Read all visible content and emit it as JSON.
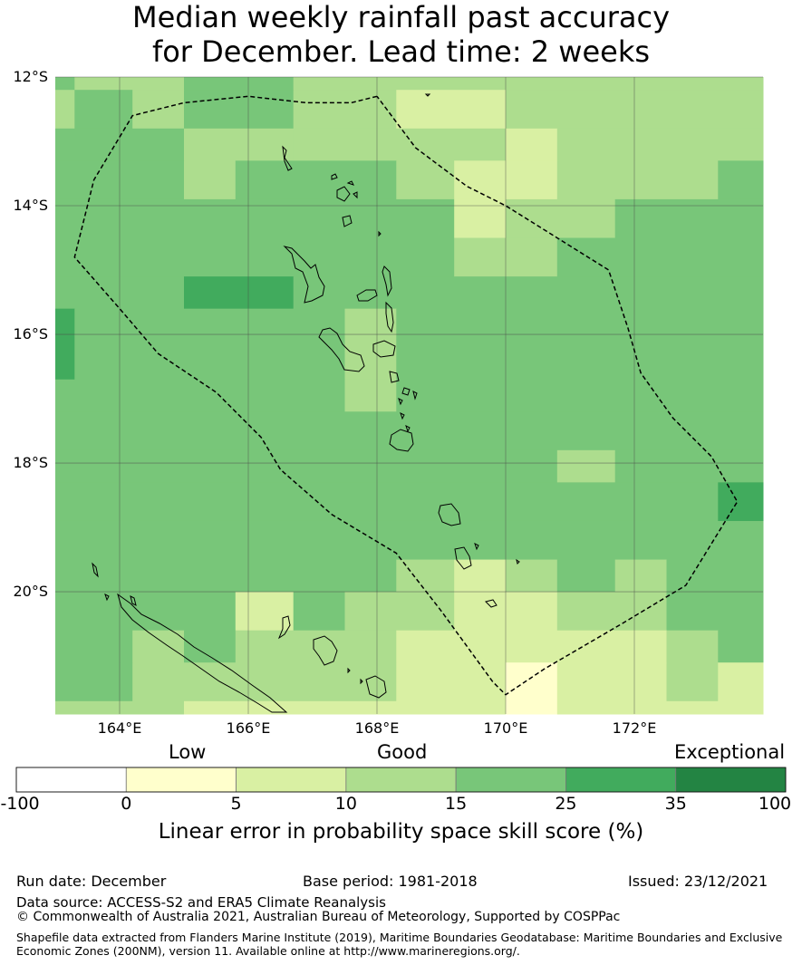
{
  "title": {
    "line1": "Median weekly rainfall past accuracy",
    "line2": "for December. Lead time: 2 weeks"
  },
  "map": {
    "lon_range": [
      163.0,
      174.0
    ],
    "lat_range": [
      -21.9,
      -12.0
    ],
    "lat_ticks": [
      {
        "value": -12,
        "label": "12°S"
      },
      {
        "value": -14,
        "label": "14°S"
      },
      {
        "value": -16,
        "label": "16°S"
      },
      {
        "value": -18,
        "label": "18°S"
      },
      {
        "value": -20,
        "label": "20°S"
      }
    ],
    "lon_ticks": [
      {
        "value": 164,
        "label": "164°E"
      },
      {
        "value": 166,
        "label": "166°E"
      },
      {
        "value": 168,
        "label": "168°E"
      },
      {
        "value": 170,
        "label": "170°E"
      },
      {
        "value": 172,
        "label": "172°E"
      }
    ],
    "colors": [
      "#ffffff",
      "#ffffcc",
      "#d9f0a3",
      "#addd8e",
      "#78c679",
      "#41ab5d",
      "#238443"
    ],
    "grid_note": "Skill class per cell (0=-100..0, 1=0..5, 2=5..10, 3=10..15, 4=15..25, 5=25..35, 6=35..100)",
    "cells": [
      {
        "lon": [
          163.0,
          163.3
        ],
        "lat": [
          -12.0,
          -12.2
        ],
        "cls": 4
      },
      {
        "lon": [
          163.3,
          165.0
        ],
        "lat": [
          -12.0,
          -12.2
        ],
        "cls": 3
      },
      {
        "lon": [
          165.0,
          166.7
        ],
        "lat": [
          -12.0,
          -12.2
        ],
        "cls": 4
      },
      {
        "lon": [
          166.7,
          174.0
        ],
        "lat": [
          -12.0,
          -12.2
        ],
        "cls": 3
      },
      {
        "lon": [
          163.0,
          163.3
        ],
        "lat": [
          -12.2,
          -12.8
        ],
        "cls": 3
      },
      {
        "lon": [
          163.3,
          164.2
        ],
        "lat": [
          -12.2,
          -12.8
        ],
        "cls": 4
      },
      {
        "lon": [
          164.2,
          165.0
        ],
        "lat": [
          -12.2,
          -12.8
        ],
        "cls": 3
      },
      {
        "lon": [
          165.0,
          166.7
        ],
        "lat": [
          -12.2,
          -12.8
        ],
        "cls": 4
      },
      {
        "lon": [
          166.7,
          168.3
        ],
        "lat": [
          -12.2,
          -12.8
        ],
        "cls": 3
      },
      {
        "lon": [
          168.3,
          170.0
        ],
        "lat": [
          -12.2,
          -12.8
        ],
        "cls": 2
      },
      {
        "lon": [
          170.0,
          174.0
        ],
        "lat": [
          -12.2,
          -12.8
        ],
        "cls": 3
      },
      {
        "lon": [
          163.0,
          165.0
        ],
        "lat": [
          -12.8,
          -13.3
        ],
        "cls": 4
      },
      {
        "lon": [
          165.0,
          166.7
        ],
        "lat": [
          -12.8,
          -13.3
        ],
        "cls": 3
      },
      {
        "lon": [
          166.7,
          170.0
        ],
        "lat": [
          -12.8,
          -13.3
        ],
        "cls": 3
      },
      {
        "lon": [
          170.0,
          170.8
        ],
        "lat": [
          -12.8,
          -13.3
        ],
        "cls": 2
      },
      {
        "lon": [
          170.8,
          174.0
        ],
        "lat": [
          -12.8,
          -13.3
        ],
        "cls": 3
      },
      {
        "lon": [
          163.0,
          165.0
        ],
        "lat": [
          -13.3,
          -13.9
        ],
        "cls": 4
      },
      {
        "lon": [
          165.0,
          165.8
        ],
        "lat": [
          -13.3,
          -13.9
        ],
        "cls": 3
      },
      {
        "lon": [
          165.8,
          168.3
        ],
        "lat": [
          -13.3,
          -13.9
        ],
        "cls": 4
      },
      {
        "lon": [
          168.3,
          169.2
        ],
        "lat": [
          -13.3,
          -13.9
        ],
        "cls": 3
      },
      {
        "lon": [
          169.2,
          170.8
        ],
        "lat": [
          -13.3,
          -13.9
        ],
        "cls": 2
      },
      {
        "lon": [
          170.8,
          173.3
        ],
        "lat": [
          -13.3,
          -13.9
        ],
        "cls": 3
      },
      {
        "lon": [
          173.3,
          174.0
        ],
        "lat": [
          -13.3,
          -13.9
        ],
        "cls": 4
      },
      {
        "lon": [
          163.0,
          169.2
        ],
        "lat": [
          -13.9,
          -14.5
        ],
        "cls": 4
      },
      {
        "lon": [
          169.2,
          170.0
        ],
        "lat": [
          -13.9,
          -14.5
        ],
        "cls": 2
      },
      {
        "lon": [
          170.0,
          171.7
        ],
        "lat": [
          -13.9,
          -14.5
        ],
        "cls": 3
      },
      {
        "lon": [
          171.7,
          174.0
        ],
        "lat": [
          -13.9,
          -14.5
        ],
        "cls": 4
      },
      {
        "lon": [
          163.0,
          169.2
        ],
        "lat": [
          -14.5,
          -15.1
        ],
        "cls": 4
      },
      {
        "lon": [
          169.2,
          170.8
        ],
        "lat": [
          -14.5,
          -15.1
        ],
        "cls": 3
      },
      {
        "lon": [
          170.8,
          174.0
        ],
        "lat": [
          -14.5,
          -15.1
        ],
        "cls": 4
      },
      {
        "lon": [
          163.0,
          165.0
        ],
        "lat": [
          -15.1,
          -15.6
        ],
        "cls": 4
      },
      {
        "lon": [
          165.0,
          166.7
        ],
        "lat": [
          -15.1,
          -15.6
        ],
        "cls": 5
      },
      {
        "lon": [
          166.7,
          174.0
        ],
        "lat": [
          -15.1,
          -15.6
        ],
        "cls": 4
      },
      {
        "lon": [
          163.0,
          163.3
        ],
        "lat": [
          -15.6,
          -16.7
        ],
        "cls": 5
      },
      {
        "lon": [
          163.3,
          167.5
        ],
        "lat": [
          -15.6,
          -16.7
        ],
        "cls": 4
      },
      {
        "lon": [
          167.5,
          168.3
        ],
        "lat": [
          -15.6,
          -16.7
        ],
        "cls": 3
      },
      {
        "lon": [
          168.3,
          174.0
        ],
        "lat": [
          -15.6,
          -16.7
        ],
        "cls": 4
      },
      {
        "lon": [
          163.0,
          167.5
        ],
        "lat": [
          -16.7,
          -17.2
        ],
        "cls": 4
      },
      {
        "lon": [
          167.5,
          168.3
        ],
        "lat": [
          -16.7,
          -17.2
        ],
        "cls": 3
      },
      {
        "lon": [
          168.3,
          174.0
        ],
        "lat": [
          -16.7,
          -17.2
        ],
        "cls": 4
      },
      {
        "lon": [
          163.0,
          174.0
        ],
        "lat": [
          -17.2,
          -17.8
        ],
        "cls": 4
      },
      {
        "lon": [
          163.0,
          170.8
        ],
        "lat": [
          -17.8,
          -18.3
        ],
        "cls": 4
      },
      {
        "lon": [
          170.8,
          171.7
        ],
        "lat": [
          -17.8,
          -18.3
        ],
        "cls": 3
      },
      {
        "lon": [
          171.7,
          174.0
        ],
        "lat": [
          -17.8,
          -18.3
        ],
        "cls": 4
      },
      {
        "lon": [
          163.0,
          173.3
        ],
        "lat": [
          -18.3,
          -18.9
        ],
        "cls": 4
      },
      {
        "lon": [
          173.3,
          174.0
        ],
        "lat": [
          -18.3,
          -18.9
        ],
        "cls": 5
      },
      {
        "lon": [
          163.0,
          174.0
        ],
        "lat": [
          -18.9,
          -19.5
        ],
        "cls": 4
      },
      {
        "lon": [
          163.0,
          168.3
        ],
        "lat": [
          -19.5,
          -20.0
        ],
        "cls": 4
      },
      {
        "lon": [
          168.3,
          169.2
        ],
        "lat": [
          -19.5,
          -20.0
        ],
        "cls": 3
      },
      {
        "lon": [
          169.2,
          170.0
        ],
        "lat": [
          -19.5,
          -20.0
        ],
        "cls": 2
      },
      {
        "lon": [
          170.0,
          170.8
        ],
        "lat": [
          -19.5,
          -20.0
        ],
        "cls": 3
      },
      {
        "lon": [
          170.8,
          171.7
        ],
        "lat": [
          -19.5,
          -20.0
        ],
        "cls": 4
      },
      {
        "lon": [
          171.7,
          172.5
        ],
        "lat": [
          -19.5,
          -20.0
        ],
        "cls": 3
      },
      {
        "lon": [
          172.5,
          174.0
        ],
        "lat": [
          -19.5,
          -20.0
        ],
        "cls": 4
      },
      {
        "lon": [
          163.0,
          165.8
        ],
        "lat": [
          -20.0,
          -20.6
        ],
        "cls": 4
      },
      {
        "lon": [
          165.8,
          166.7
        ],
        "lat": [
          -20.0,
          -20.6
        ],
        "cls": 2
      },
      {
        "lon": [
          166.7,
          167.5
        ],
        "lat": [
          -20.0,
          -20.6
        ],
        "cls": 4
      },
      {
        "lon": [
          167.5,
          169.2
        ],
        "lat": [
          -20.0,
          -20.6
        ],
        "cls": 3
      },
      {
        "lon": [
          169.2,
          170.8
        ],
        "lat": [
          -20.0,
          -20.6
        ],
        "cls": 2
      },
      {
        "lon": [
          170.8,
          172.5
        ],
        "lat": [
          -20.0,
          -20.6
        ],
        "cls": 3
      },
      {
        "lon": [
          172.5,
          174.0
        ],
        "lat": [
          -20.0,
          -20.6
        ],
        "cls": 4
      },
      {
        "lon": [
          163.0,
          164.2
        ],
        "lat": [
          -20.6,
          -21.1
        ],
        "cls": 4
      },
      {
        "lon": [
          164.2,
          165.0
        ],
        "lat": [
          -20.6,
          -21.1
        ],
        "cls": 3
      },
      {
        "lon": [
          165.0,
          165.8
        ],
        "lat": [
          -20.6,
          -21.1
        ],
        "cls": 4
      },
      {
        "lon": [
          165.8,
          168.3
        ],
        "lat": [
          -20.6,
          -21.1
        ],
        "cls": 3
      },
      {
        "lon": [
          168.3,
          172.5
        ],
        "lat": [
          -20.6,
          -21.1
        ],
        "cls": 2
      },
      {
        "lon": [
          172.5,
          173.3
        ],
        "lat": [
          -20.6,
          -21.1
        ],
        "cls": 3
      },
      {
        "lon": [
          173.3,
          174.0
        ],
        "lat": [
          -20.6,
          -21.1
        ],
        "cls": 4
      },
      {
        "lon": [
          163.0,
          164.2
        ],
        "lat": [
          -21.1,
          -21.7
        ],
        "cls": 4
      },
      {
        "lon": [
          164.2,
          168.3
        ],
        "lat": [
          -21.1,
          -21.7
        ],
        "cls": 3
      },
      {
        "lon": [
          168.3,
          170.0
        ],
        "lat": [
          -21.1,
          -21.7
        ],
        "cls": 2
      },
      {
        "lon": [
          170.0,
          170.8
        ],
        "lat": [
          -21.1,
          -21.7
        ],
        "cls": 1
      },
      {
        "lon": [
          170.8,
          172.5
        ],
        "lat": [
          -21.1,
          -21.7
        ],
        "cls": 2
      },
      {
        "lon": [
          172.5,
          173.3
        ],
        "lat": [
          -21.1,
          -21.7
        ],
        "cls": 3
      },
      {
        "lon": [
          173.3,
          174.0
        ],
        "lat": [
          -21.1,
          -21.7
        ],
        "cls": 2
      },
      {
        "lon": [
          163.0,
          165.0
        ],
        "lat": [
          -21.7,
          -21.9
        ],
        "cls": 3
      },
      {
        "lon": [
          165.0,
          168.3
        ],
        "lat": [
          -21.7,
          -21.9
        ],
        "cls": 2
      },
      {
        "lon": [
          168.3,
          170.0
        ],
        "lat": [
          -21.7,
          -21.9
        ],
        "cls": 2
      },
      {
        "lon": [
          170.0,
          170.8
        ],
        "lat": [
          -21.7,
          -21.9
        ],
        "cls": 1
      },
      {
        "lon": [
          170.8,
          174.0
        ],
        "lat": [
          -21.7,
          -21.9
        ],
        "cls": 2
      }
    ],
    "eez_boundary": [
      [
        168.0,
        -12.3
      ],
      [
        167.6,
        -12.4
      ],
      [
        166.9,
        -12.4
      ],
      [
        166.0,
        -12.3
      ],
      [
        165.0,
        -12.4
      ],
      [
        164.2,
        -12.6
      ],
      [
        163.6,
        -13.6
      ],
      [
        163.3,
        -14.8
      ],
      [
        164.0,
        -15.6
      ],
      [
        164.6,
        -16.3
      ],
      [
        165.5,
        -16.9
      ],
      [
        166.2,
        -17.6
      ],
      [
        166.5,
        -18.1
      ],
      [
        167.3,
        -18.8
      ],
      [
        168.3,
        -19.4
      ],
      [
        169.0,
        -20.3
      ],
      [
        169.8,
        -21.4
      ],
      [
        170.0,
        -21.6
      ],
      [
        170.6,
        -21.2
      ],
      [
        171.8,
        -20.5
      ],
      [
        172.8,
        -19.9
      ],
      [
        173.6,
        -18.6
      ],
      [
        173.2,
        -17.9
      ],
      [
        172.6,
        -17.3
      ],
      [
        172.1,
        -16.6
      ],
      [
        171.9,
        -15.9
      ],
      [
        171.6,
        -15.0
      ],
      [
        170.8,
        -14.5
      ],
      [
        170.0,
        -14.0
      ],
      [
        169.4,
        -13.7
      ],
      [
        168.6,
        -13.1
      ],
      [
        168.0,
        -12.3
      ]
    ]
  },
  "colorbar": {
    "categories": [
      "Low",
      "Good",
      "Exceptional"
    ],
    "ticks": [
      "-100",
      "0",
      "5",
      "10",
      "15",
      "25",
      "35",
      "100"
    ],
    "label": "Linear error in probability space skill score (%)"
  },
  "footer": {
    "run_date": "Run date: December",
    "base_period": "Base period: 1981-2018",
    "issued": "Issued: 23/12/2021",
    "data_source": "Data source: ACCESS-S2 and ERA5 Climate Reanalysis",
    "copyright": "© Commonwealth of Australia 2021, Australian Bureau of Meteorology, Supported by COSPPac",
    "shapefile_line1": "Shapefile data extracted from Flanders Marine Institute (2019), Maritime Boundaries Geodatabase: Maritime Boundaries and Exclusive",
    "shapefile_line2": "Economic Zones (200NM), version 11. Available online at http://www.marineregions.org/."
  }
}
